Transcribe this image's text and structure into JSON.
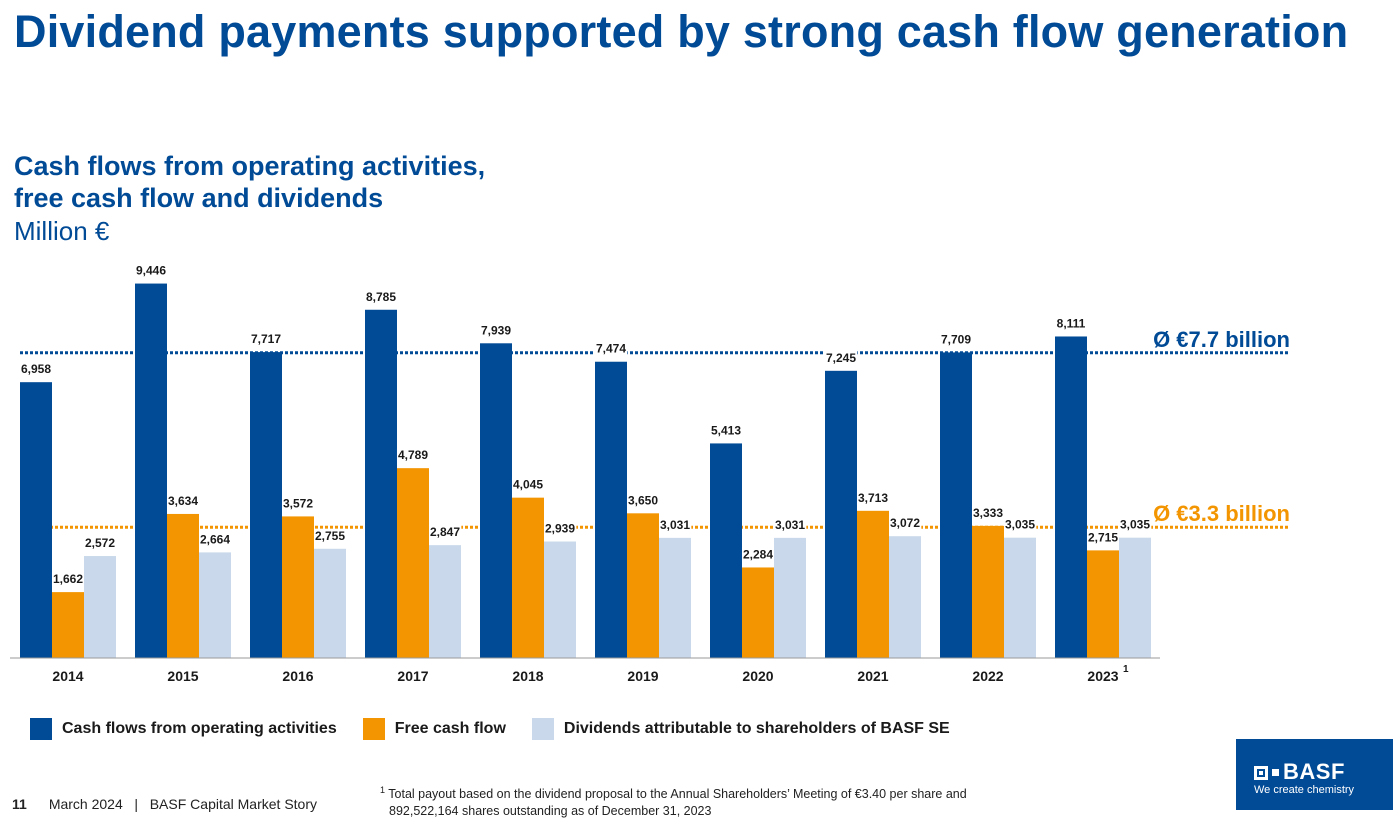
{
  "header": {
    "title": "Dividend payments supported by strong cash flow generation",
    "subtitle_line1": "Cash flows from operating activities,",
    "subtitle_line2": "free cash flow and dividends",
    "unit": "Million €"
  },
  "chart_data": {
    "type": "bar",
    "categories": [
      "2014",
      "2015",
      "2016",
      "2017",
      "2018",
      "2019",
      "2020",
      "2021",
      "2022",
      "2023"
    ],
    "category_superscripts": [
      "",
      "",
      "",
      "",
      "",
      "",
      "",
      "",
      "",
      "1"
    ],
    "series": [
      {
        "name": "Cash flows from operating activities",
        "color": "#004a96",
        "values": [
          6958,
          9446,
          7717,
          8785,
          7939,
          7474,
          5413,
          7245,
          7709,
          8111
        ],
        "labels": [
          "6,958",
          "9,446",
          "7,717",
          "8,785",
          "7,939",
          "7,474",
          "5,413",
          "7,245",
          "7,709",
          "8,111"
        ]
      },
      {
        "name": "Free cash flow",
        "color": "#f39500",
        "values": [
          1662,
          3634,
          3572,
          4789,
          4045,
          3650,
          2284,
          3713,
          3333,
          2715
        ],
        "labels": [
          "1,662",
          "3,634",
          "3,572",
          "4,789",
          "4,045",
          "3,650",
          "2,284",
          "3,713",
          "3,333",
          "2,715"
        ]
      },
      {
        "name": "Dividends attributable to shareholders of BASF SE",
        "color": "#c9d8ea",
        "values": [
          2572,
          2664,
          2755,
          2847,
          2939,
          3031,
          3031,
          3072,
          3035,
          3035
        ],
        "labels": [
          "2,572",
          "2,664",
          "2,755",
          "2,847",
          "2,939",
          "3,031",
          "3,031",
          "3,072",
          "3,035",
          "3,035"
        ]
      }
    ],
    "reference_lines": [
      {
        "value": 7700,
        "label": "Ø €7.7 billion",
        "color": "#004a96"
      },
      {
        "value": 3300,
        "label": "Ø €3.3 billion",
        "color": "#f39500"
      }
    ],
    "ylim": [
      0,
      9500
    ],
    "grid": false,
    "legend_position": "bottom"
  },
  "footer": {
    "page": "11",
    "text": "March 2024   |   BASF Capital Market Story",
    "footnote_mark": "1",
    "footnote_line1": "Total payout based on the dividend proposal to the Annual Shareholders’ Meeting of €3.40 per share and",
    "footnote_line2": "892,522,164 shares outstanding as of December 31, 2023"
  },
  "logo": {
    "name": "BASF",
    "tagline": "We create chemistry",
    "color": "#004a96"
  }
}
